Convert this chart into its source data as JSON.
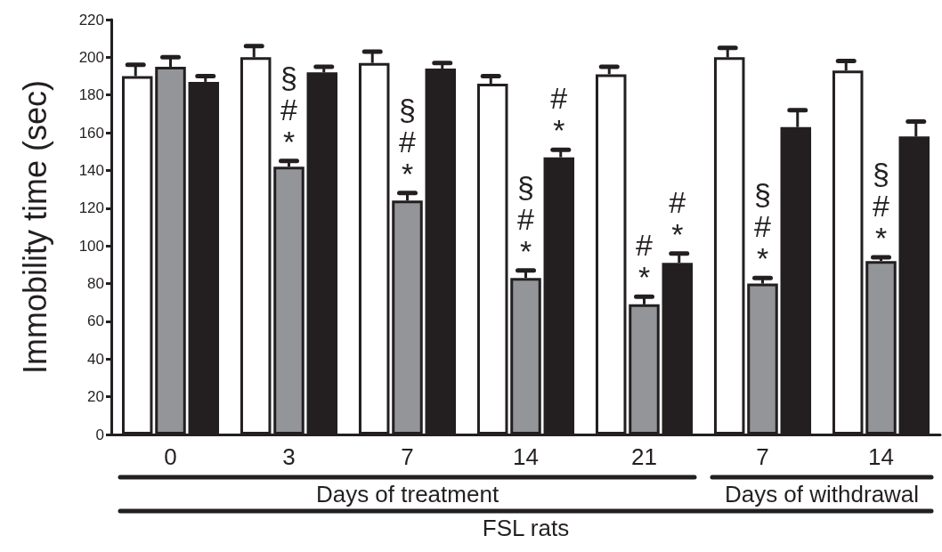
{
  "chart_data": {
    "type": "bar",
    "categories": [
      "0",
      "3",
      "7",
      "14",
      "21",
      "7",
      "14"
    ],
    "xlabel": "FSL rats",
    "ylabel": "Immobility time (sec)",
    "annotations": [
      "Days of treatment",
      "Days of withdrawal"
    ],
    "series": [
      {
        "color": "#ffffff",
        "values": [
          190,
          200,
          197,
          186,
          191,
          200,
          193
        ],
        "errors": [
          [
            190,
            196
          ],
          [
            200,
            206
          ],
          [
            197,
            203
          ],
          [
            186,
            190
          ],
          [
            191,
            195
          ],
          [
            200,
            205
          ],
          [
            193,
            198
          ]
        ]
      },
      {
        "color": "#939598",
        "values": [
          195,
          142,
          124,
          83,
          69,
          80,
          92
        ],
        "errors": [
          [
            195,
            200
          ],
          [
            142,
            145
          ],
          [
            124,
            128
          ],
          [
            83,
            87
          ],
          [
            69,
            73
          ],
          [
            80,
            83
          ],
          [
            92,
            94
          ]
        ],
        "value_labels": [
          null,
          "§\n#\n*",
          "§\n#\n*",
          "§\n#\n*",
          "#\n*",
          "§\n#\n*",
          "§\n#\n*"
        ]
      },
      {
        "color": "#231f20",
        "values": [
          187,
          192,
          194,
          147,
          91,
          163,
          158
        ],
        "errors": [
          [
            187,
            190
          ],
          [
            192,
            195
          ],
          [
            194,
            197
          ],
          [
            147,
            151
          ],
          [
            91,
            96
          ],
          [
            163,
            172
          ],
          [
            158,
            166
          ]
        ],
        "value_labels": [
          null,
          null,
          null,
          "#\n*",
          "#\n*",
          null,
          null
        ]
      }
    ],
    "ylim": [
      0,
      220
    ],
    "yticks": [
      0,
      20,
      40,
      60,
      80,
      100,
      120,
      140,
      160,
      180,
      200,
      220
    ]
  }
}
